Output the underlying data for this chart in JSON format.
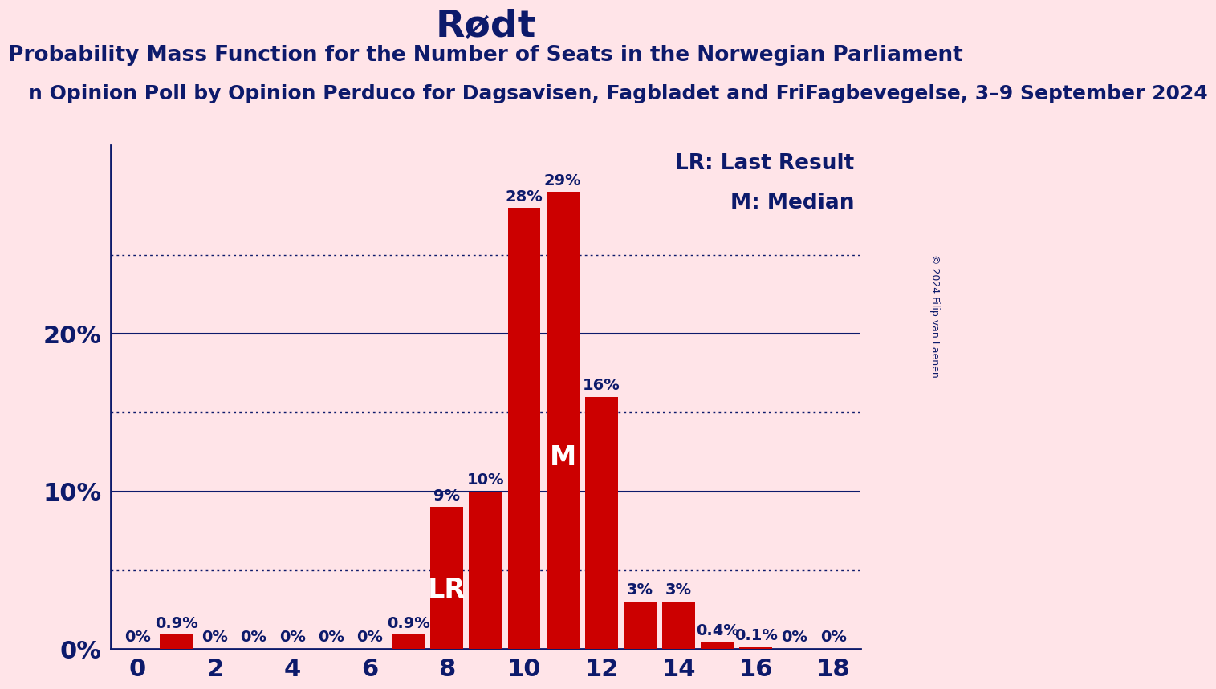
{
  "title": "Rødt",
  "subtitle": "Probability Mass Function for the Number of Seats in the Norwegian Parliament",
  "sub_subtitle": "n Opinion Poll by Opinion Perduco for Dagsavisen, Fagbladet and FriFagbevegelse, 3–9 September 2024",
  "copyright": "© 2024 Filip van Laenen",
  "seats": [
    0,
    1,
    2,
    3,
    4,
    5,
    6,
    7,
    8,
    9,
    10,
    11,
    12,
    13,
    14,
    15,
    16,
    17,
    18
  ],
  "probabilities": [
    0.0,
    0.9,
    0.0,
    0.0,
    0.0,
    0.0,
    0.0,
    0.9,
    9.0,
    10.0,
    28.0,
    29.0,
    16.0,
    3.0,
    3.0,
    0.4,
    0.1,
    0.0,
    0.0
  ],
  "bar_color": "#CC0000",
  "background_color": "#FFE4E8",
  "text_color": "#0D1A6B",
  "lr_seat": 8,
  "median_seat": 11,
  "ylim": [
    0,
    32
  ],
  "yticks": [
    0,
    10,
    20
  ],
  "ytick_labels": [
    "0%",
    "10%",
    "20%"
  ],
  "dotted_yticks": [
    5,
    15,
    25
  ],
  "xticks": [
    0,
    2,
    4,
    6,
    8,
    10,
    12,
    14,
    16,
    18
  ],
  "legend_lr": "LR: Last Result",
  "legend_m": "M: Median",
  "title_fontsize": 34,
  "subtitle_fontsize": 19,
  "sub_subtitle_fontsize": 18,
  "axis_tick_fontsize": 22,
  "bar_label_fontsize": 14,
  "legend_fontsize": 19,
  "inside_bar_fontsize": 24
}
